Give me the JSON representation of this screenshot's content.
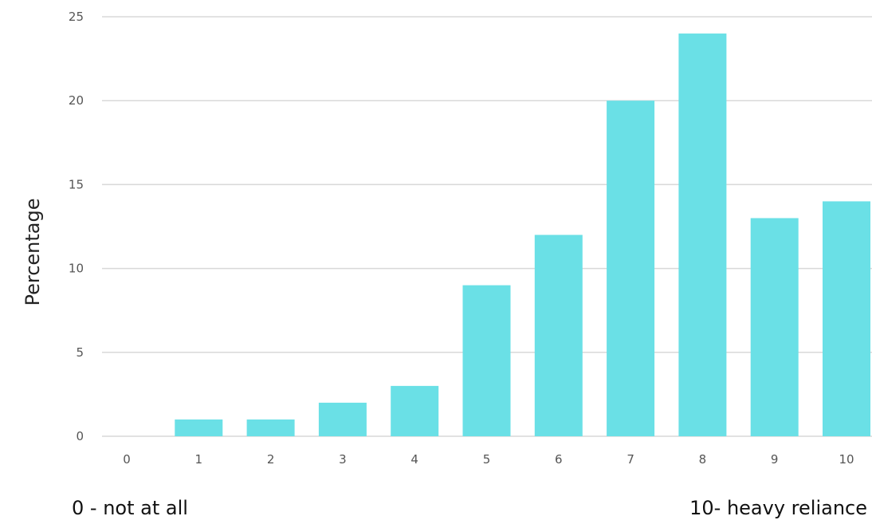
{
  "chart_data": {
    "type": "bar",
    "title": "",
    "xlabel": "",
    "ylabel": "Percentage",
    "categories": [
      "0",
      "1",
      "2",
      "3",
      "4",
      "5",
      "6",
      "7",
      "8",
      "9",
      "10"
    ],
    "values": [
      0,
      1,
      1,
      2,
      3,
      9,
      12,
      20,
      24,
      13,
      14
    ],
    "ylim": [
      0,
      25
    ],
    "yticks": [
      0,
      5,
      10,
      15,
      20,
      25
    ],
    "grid": true,
    "legend": "none",
    "bar_color": "#6ae0e6",
    "scale_low_label": "0 - not at all",
    "scale_high_label": "10- heavy reliance"
  }
}
